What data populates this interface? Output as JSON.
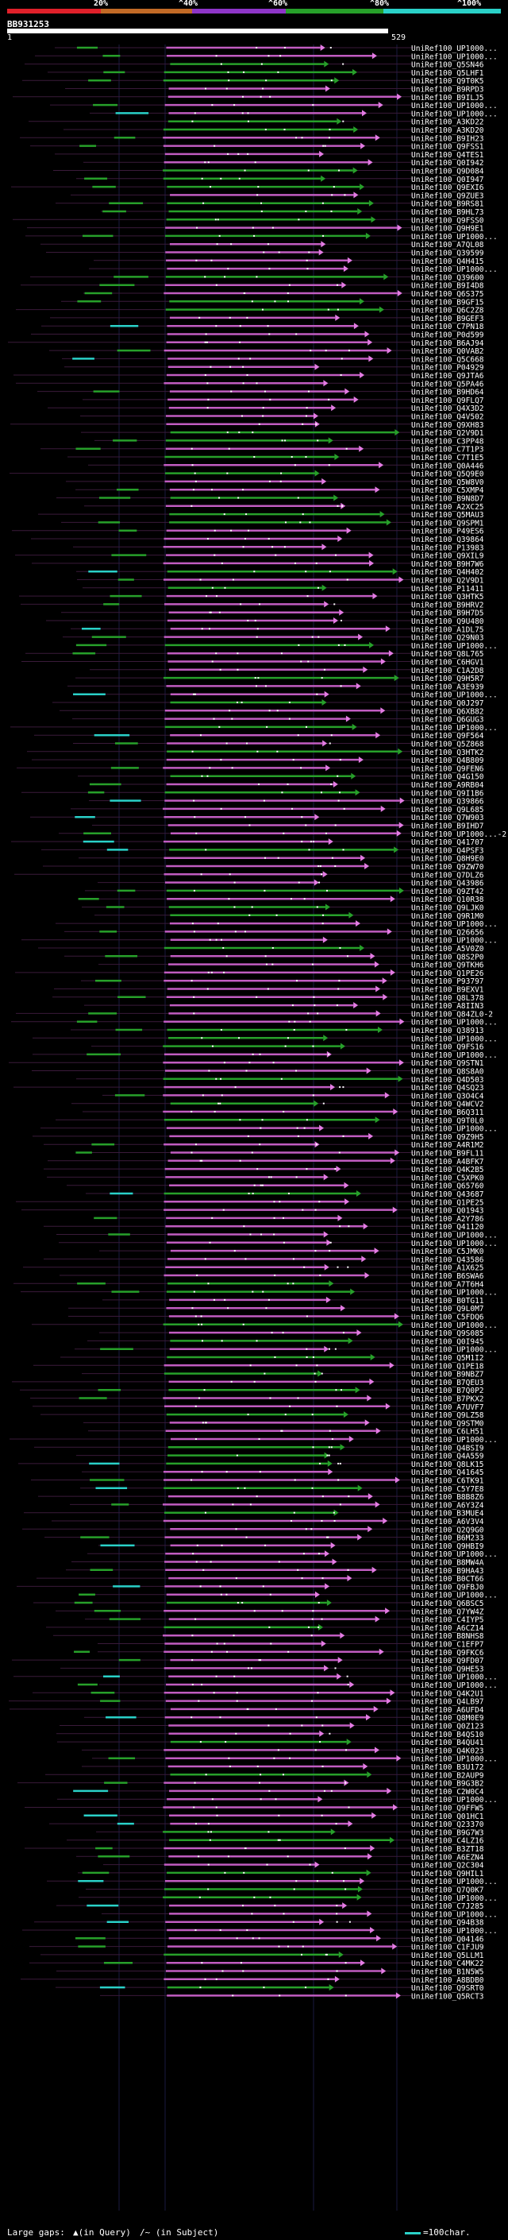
{
  "identity_scale": {
    "labels": [
      "20%",
      "^40%",
      "^60%",
      "^80%",
      "^100%"
    ],
    "colors": [
      "#e0202a",
      "#c26a26",
      "#8e35c8",
      "#27a02a",
      "#2ad1c8"
    ]
  },
  "query": {
    "name": "BB931253",
    "start": "1",
    "end": "529"
  },
  "hits": [
    "UniRef100_UP1000...",
    "UniRef100_UP1000...",
    "UniRef100_Q5SN46",
    "UniRef100_Q5LHF1",
    "UniRef100_Q9T0K5",
    "UniRef100_B9RPD3",
    "UniRef100_B9ILJ5",
    "UniRef100_UP1000...",
    "UniRef100_UP1000...",
    "UniRef100_A3KD22",
    "UniRef100_A3KD20",
    "UniRef100_B9IH23",
    "UniRef100_Q9FSS1",
    "UniRef100_Q4TES1",
    "UniRef100_Q0I942",
    "UniRef100_Q9D084",
    "UniRef100_Q0I947",
    "UniRef100_Q9EXI6",
    "UniRef100_Q9ZUE3",
    "UniRef100_B9RS81",
    "UniRef100_B9HL73",
    "UniRef100_Q9FSS0",
    "UniRef100_Q9H9E1",
    "UniRef100_UP1000...",
    "UniRef100_A7QL08",
    "UniRef100_Q39599",
    "UniRef100_Q4H415",
    "UniRef100_UP1000...",
    "UniRef100_Q39600",
    "UniRef100_B9I4D8",
    "UniRef100_Q6S375",
    "UniRef100_B9GF15",
    "UniRef100_Q6C2Z8",
    "UniRef100_B9GEF3",
    "UniRef100_C7PN18",
    "UniRef100_P0d599",
    "UniRef100_B6AJ94",
    "UniRef100_Q0VAB2",
    "UniRef100_Q5C668",
    "UniRef100_P04929",
    "UniRef100_Q9JTA6",
    "UniRef100_Q5PA46",
    "UniRef100_B9HD64",
    "UniRef100_Q9FLQ7",
    "UniRef100_Q4X3D2",
    "UniRef100_Q4V502",
    "UniRef100_Q9XH83",
    "UniRef100_Q2V9D1",
    "UniRef100_C3PP48",
    "UniRef100_C7T1P3",
    "UniRef100_C7T1E5",
    "UniRef100_Q0A446",
    "UniRef100_Q5Q9E0",
    "UniRef100_Q5W8V0",
    "UniRef100_C5XMP4",
    "UniRef100_B9N8D7",
    "UniRef100_A2XC25",
    "UniRef100_Q5MAU3",
    "UniRef100_Q9SPM1",
    "UniRef100_P49ES6",
    "UniRef100_Q39864",
    "UniRef100_P13983",
    "UniRef100_Q9XIL9",
    "UniRef100_B9H7W6",
    "UniRef100_Q4H402",
    "UniRef100_Q2V9D1",
    "UniRef100_P11411",
    "UniRef100_Q3HTK5",
    "UniRef100_B9HRV2",
    "UniRef100_B9H7D5",
    "UniRef100_Q9U480",
    "UniRef100_A1DL75",
    "UniRef100_Q29N03",
    "UniRef100_UP1000...",
    "UniRef100_Q8L765",
    "UniRef100_C6HGV1",
    "UniRef100_C1A2D8",
    "UniRef100_Q9H5R7",
    "UniRef100_A3E939",
    "UniRef100_UP1000...",
    "UniRef100_Q0J297",
    "UniRef100_Q6XB82",
    "UniRef100_Q6GUG3",
    "UniRef100_UP1000...",
    "UniRef100_Q9F564",
    "UniRef100_Q5Z868",
    "UniRef100_Q3HTK2",
    "UniRef100_Q4B809",
    "UniRef100_Q9FEN6",
    "UniRef100_Q4G150",
    "UniRef100_A9RB04",
    "UniRef100_Q9I1B6",
    "UniRef100_Q39866",
    "UniRef100_Q9L685",
    "UniRef100_Q7W903",
    "UniRef100_B9IHD7",
    "UniRef100_UP1000...-2",
    "UniRef100_Q41707",
    "UniRef100_Q4PSF3",
    "UniRef100_Q8H9E0",
    "UniRef100_Q9ZW70",
    "UniRef100_Q7DLZ6",
    "UniRef100_Q43986",
    "UniRef100_Q9ZT42",
    "UniRef100_Q10R38",
    "UniRef100_Q9LJK0",
    "UniRef100_Q9R1M0",
    "UniRef100_UP1000...",
    "UniRef100_Q26656",
    "UniRef100_UP1000...",
    "UniRef100_A5V0Z0",
    "UniRef100_Q8S2P0",
    "UniRef100_Q9TKH6",
    "UniRef100_Q1PE26",
    "UniRef100_P93797",
    "UniRef100_B9EXV1",
    "UniRef100_Q8L378",
    "UniRef100_A8IIN3",
    "UniRef100_Q84ZL0-2",
    "UniRef100_UP1000...",
    "UniRef100_Q38913",
    "UniRef100_UP1000...",
    "UniRef100_Q9FS16",
    "UniRef100_UP1000...",
    "UniRef100_Q9STN1",
    "UniRef100_Q8S8A0",
    "UniRef100_Q4D503",
    "UniRef100_Q4SQ23",
    "UniRef100_Q3O4C4",
    "UniRef100_Q4WCV2",
    "UniRef100_B6Q311",
    "UniRef100_Q9T0L0",
    "UniRef100_UP1000...",
    "UniRef100_Q9Z9H5",
    "UniRef100_A4R1M2",
    "UniRef100_B9FL11",
    "UniRef100_A4BFK7",
    "UniRef100_Q4K2B5",
    "UniRef100_C5XPK0",
    "UniRef100_Q65760",
    "UniRef100_Q43687",
    "UniRef100_Q1PE25",
    "UniRef100_Q01943",
    "UniRef100_A2Y786",
    "UniRef100_Q41120",
    "UniRef100_UP1000...",
    "UniRef100_UP1000...",
    "UniRef100_C5JMK0",
    "UniRef100_Q43586",
    "UniRef100_A1X625",
    "UniRef100_B6SWA6",
    "UniRef100_A7T6H4",
    "UniRef100_UP1000...",
    "UniRef100_B0TG11",
    "UniRef100_Q9L0M7",
    "UniRef100_C5FDQ6",
    "UniRef100_UP1000...",
    "UniRef100_Q9S085",
    "UniRef100_Q0I945",
    "UniRef100_UP1000...",
    "UniRef100_Q5M1I2",
    "UniRef100_Q1PE18",
    "UniRef100_B9NBZ7",
    "UniRef100_B7QEU3",
    "UniRef100_B7Q0P2",
    "UniRef100_B7PKX2",
    "UniRef100_A7UVF7",
    "UniRef100_Q9LZ58",
    "UniRef100_Q9STM0",
    "UniRef100_C6LH51",
    "UniRef100_UP1000...",
    "UniRef100_Q4BSI9",
    "UniRef100_Q4A559",
    "UniRef100_Q8LK15",
    "UniRef100_Q41645",
    "UniRef100_C6TK91",
    "UniRef100_C5Y7E8",
    "UniRef100_B8B8Z6",
    "UniRef100_A6Y3Z4",
    "UniRef100_B3MUE4",
    "UniRef100_A6V3V4",
    "UniRef100_Q2Q9G0",
    "UniRef100_B6M233",
    "UniRef100_Q9HBI9",
    "UniRef100_UP1000...",
    "UniRef100_B8MW4A",
    "UniRef100_B9HA43",
    "UniRef100_B0CT66",
    "UniRef100_Q9FBJ0",
    "UniRef100_UP1000...",
    "UniRef100_Q6BSC5",
    "UniRef100_Q7YW4Z",
    "UniRef100_C4IYP5",
    "UniRef100_A6CZ14",
    "UniRef100_B8NHS8",
    "UniRef100_C1EFP7",
    "UniRef100_Q9FKC6",
    "UniRef100_Q9FD07",
    "UniRef100_Q9HE53",
    "UniRef100_UP1000...",
    "UniRef100_UP1000...",
    "UniRef100_Q4K2U1",
    "UniRef100_Q4LB97",
    "UniRef100_A6UFD4",
    "UniRef100_Q8M0E9",
    "UniRef100_Q0Z123",
    "UniRef100_B4QS10",
    "UniRef100_B4QU41",
    "UniRef100_Q4K023",
    "UniRef100_UP1000...",
    "UniRef100_B3U172",
    "UniRef100_B2AUP9",
    "UniRef100_B9G3B2",
    "UniRef100_C2W0C4",
    "UniRef100_UP1000...",
    "UniRef100_Q9FFW5",
    "UniRef100_Q01HC1",
    "UniRef100_Q23370",
    "UniRef100_B9G7W3",
    "UniRef100_C4LZ16",
    "UniRef100_B3ZT18",
    "UniRef100_A6EZN4",
    "UniRef100_Q2C304",
    "UniRef100_Q9HIL1",
    "UniRef100_UP1000...",
    "UniRef100_Q7Q0K7",
    "UniRef100_UP1000...",
    "UniRef100_C7J285",
    "UniRef100_UP1000...",
    "UniRef100_Q94B38",
    "UniRef100_UP1000...",
    "UniRef100_Q04146",
    "UniRef100_C1FJU9",
    "UniRef100_Q5LLM1",
    "UniRef100_C4MK22",
    "UniRef100_B1N5W5",
    "UniRef100_A8BDB0",
    "UniRef100_Q9SRT0",
    "UniRef100_Q5RCT3"
  ],
  "legend": {
    "large_gaps_label": "Large gaps:",
    "in_query": "▲(in Query)",
    "in_subject": "/~ (in Subject)",
    "scale": "=100char."
  }
}
